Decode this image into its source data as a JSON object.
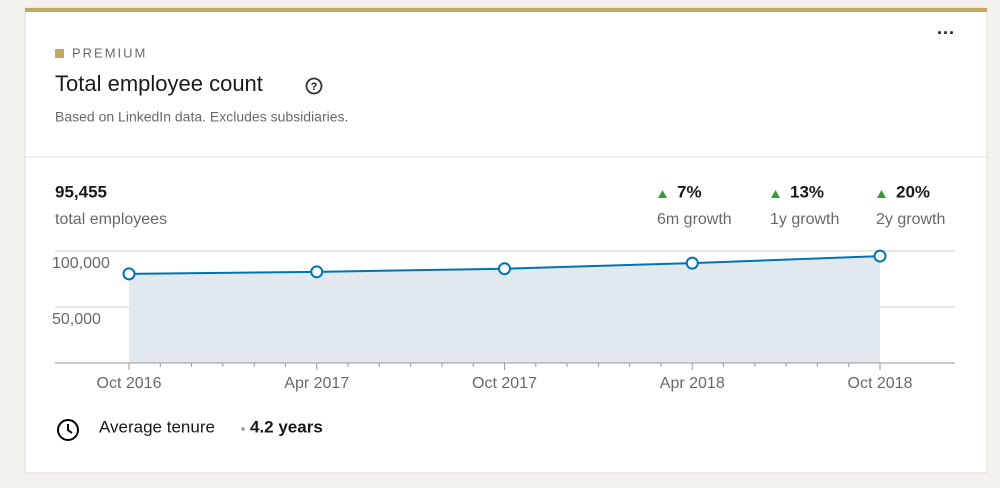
{
  "header": {
    "badge": "PREMIUM",
    "title": "Total employee count",
    "subtitle": "Based on LinkedIn data. Excludes subsidiaries."
  },
  "summary": {
    "count": "95,455",
    "count_label": "total employees",
    "growth": [
      {
        "value": "7%",
        "label": "6m growth"
      },
      {
        "value": "13%",
        "label": "1y growth"
      },
      {
        "value": "20%",
        "label": "2y growth"
      }
    ]
  },
  "chart_data": {
    "type": "line",
    "x": [
      "Oct 2016",
      "Apr 2017",
      "Oct 2017",
      "Apr 2018",
      "Oct 2018"
    ],
    "series": [
      {
        "color": "#0073b1",
        "values": [
          79600,
          81400,
          84200,
          89200,
          95455
        ]
      }
    ],
    "ylim": [
      0,
      100000
    ],
    "yticks": [
      {
        "value": 50000,
        "label": "50,000"
      },
      {
        "value": 100000,
        "label": "100,000"
      }
    ],
    "grid": true,
    "area_color": "#e1e9ee"
  },
  "footer": {
    "label": "Average tenure",
    "value": "4.2 years"
  }
}
